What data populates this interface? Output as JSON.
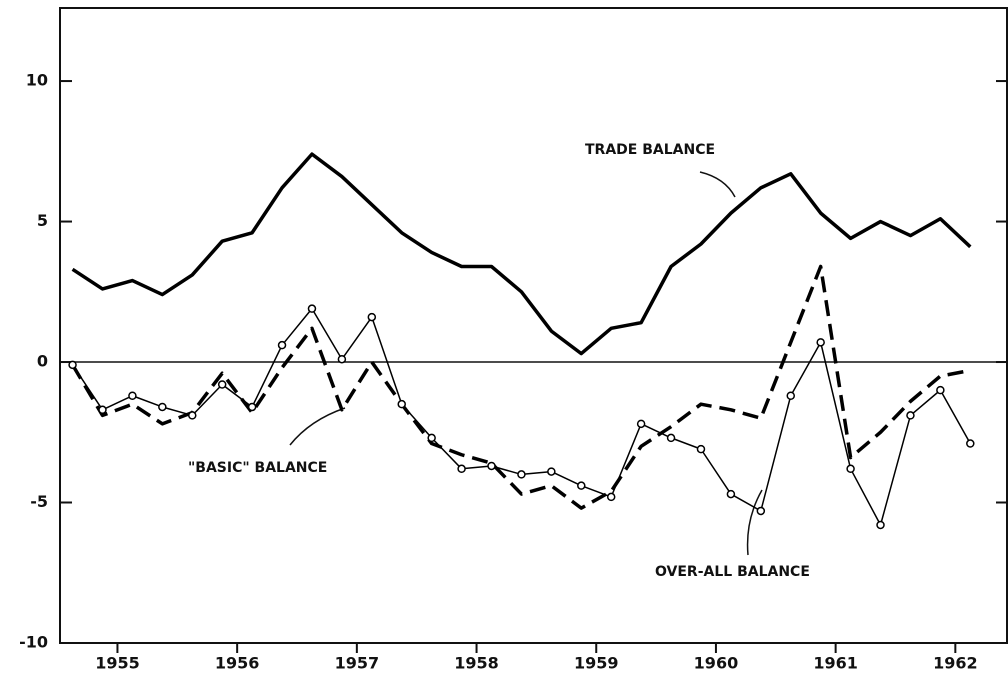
{
  "chart_data": {
    "type": "line",
    "x": [
      1955.125,
      1955.375,
      1955.625,
      1955.875,
      1956.125,
      1956.375,
      1956.625,
      1956.875,
      1957.125,
      1957.375,
      1957.625,
      1957.875,
      1958.125,
      1958.375,
      1958.625,
      1958.875,
      1959.125,
      1959.375,
      1959.625,
      1959.875,
      1960.125,
      1960.375,
      1960.625,
      1960.875,
      1961.125,
      1961.375,
      1961.625,
      1961.875,
      1962.125,
      1962.375,
      1962.625
    ],
    "series": [
      {
        "name": "TRADE BALANCE",
        "color": "#000000",
        "width": 3.5,
        "dash": false,
        "marker": "none",
        "values": [
          3.3,
          2.6,
          2.9,
          2.4,
          3.1,
          4.3,
          4.6,
          6.2,
          7.4,
          6.6,
          5.6,
          4.6,
          3.9,
          3.4,
          3.4,
          2.5,
          1.1,
          0.3,
          1.2,
          1.4,
          3.4,
          4.2,
          5.3,
          6.2,
          6.7,
          5.3,
          4.4,
          5.0,
          4.5,
          5.1,
          4.1
        ]
      },
      {
        "name": "\"BASIC\" BALANCE",
        "color": "#000000",
        "width": 3.5,
        "dash": true,
        "marker": "none",
        "values": [
          -0.1,
          -1.9,
          -1.5,
          -2.2,
          -1.8,
          -0.4,
          -1.8,
          -0.2,
          1.2,
          -1.7,
          0.0,
          -1.5,
          -2.9,
          -3.3,
          -3.6,
          -4.7,
          -4.4,
          -5.2,
          -4.6,
          -3.0,
          -2.3,
          -1.5,
          -1.7,
          -2.0,
          0.7,
          3.4,
          -3.4,
          -2.5,
          -1.4,
          -0.5,
          -0.3
        ]
      },
      {
        "name": "OVER-ALL BALANCE",
        "color": "#000000",
        "width": 1.5,
        "dash": false,
        "marker": "circle",
        "values": [
          -0.1,
          -1.7,
          -1.2,
          -1.6,
          -1.9,
          -0.8,
          -1.6,
          0.6,
          1.9,
          0.1,
          1.6,
          -1.5,
          -2.7,
          -3.8,
          -3.7,
          -4.0,
          -3.9,
          -4.4,
          -4.8,
          -2.2,
          -2.7,
          -3.1,
          -4.7,
          -5.3,
          -1.2,
          0.7,
          -3.8,
          -5.8,
          -1.9,
          -1.0,
          -2.9
        ]
      }
    ],
    "xlim": [
      1955.02,
      1962.94
    ],
    "xticks": [
      {
        "value": 1955.5,
        "label": "1955"
      },
      {
        "value": 1956.5,
        "label": "1956"
      },
      {
        "value": 1957.5,
        "label": "1957"
      },
      {
        "value": 1958.5,
        "label": "1958"
      },
      {
        "value": 1959.5,
        "label": "1959"
      },
      {
        "value": 1960.5,
        "label": "1960"
      },
      {
        "value": 1961.5,
        "label": "1961"
      },
      {
        "value": 1962.5,
        "label": "1962"
      }
    ],
    "ylim": [
      -10,
      12.6
    ],
    "yticks": [
      10,
      5,
      0,
      -5,
      -10
    ],
    "zero_line": true
  }
}
